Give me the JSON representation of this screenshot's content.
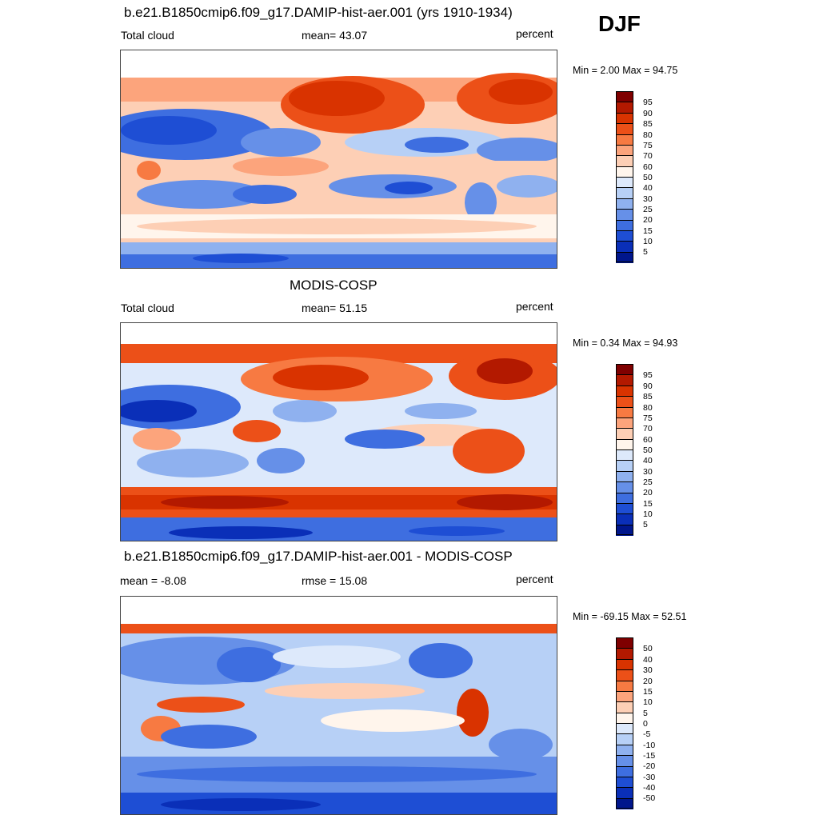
{
  "season": "DJF",
  "panels": [
    {
      "title": "b.e21.B1850cmip6.f09_g17.DAMIP-hist-aer.001 (yrs 1910-1934)",
      "left_label": "Total cloud",
      "mid_label": "mean=  43.07",
      "units": "percent",
      "minmax": "Min =   2.00 Max =  94.75",
      "colorbar_ticks": [
        "95",
        "90",
        "85",
        "80",
        "75",
        "70",
        "60",
        "50",
        "40",
        "30",
        "25",
        "20",
        "15",
        "10",
        "5"
      ]
    },
    {
      "title": "MODIS-COSP",
      "left_label": "Total cloud",
      "mid_label": "mean=  51.15",
      "units": "percent",
      "minmax": "Min =   0.34 Max =  94.93",
      "colorbar_ticks": [
        "95",
        "90",
        "85",
        "80",
        "75",
        "70",
        "60",
        "50",
        "40",
        "30",
        "25",
        "20",
        "15",
        "10",
        "5"
      ]
    },
    {
      "title": "b.e21.B1850cmip6.f09_g17.DAMIP-hist-aer.001 - MODIS-COSP",
      "left_label": "mean =  -8.08",
      "mid_label": "rmse =  15.08",
      "units": "percent",
      "minmax": "Min = -69.15 Max =  52.51",
      "colorbar_ticks": [
        "50",
        "40",
        "30",
        "20",
        "15",
        "10",
        "5",
        "0",
        "-5",
        "-10",
        "-15",
        "-20",
        "-30",
        "-40",
        "-50"
      ]
    }
  ],
  "colors": {
    "palette": [
      "#7f0000",
      "#b31900",
      "#d93300",
      "#ec5018",
      "#f77a42",
      "#fca47c",
      "#fdcfb5",
      "#fff5ec",
      "#dde9fb",
      "#b7d0f6",
      "#8fb1ef",
      "#6690e8",
      "#3e6ee0",
      "#1e4ed4",
      "#0a2fb8",
      "#00168c"
    ]
  }
}
